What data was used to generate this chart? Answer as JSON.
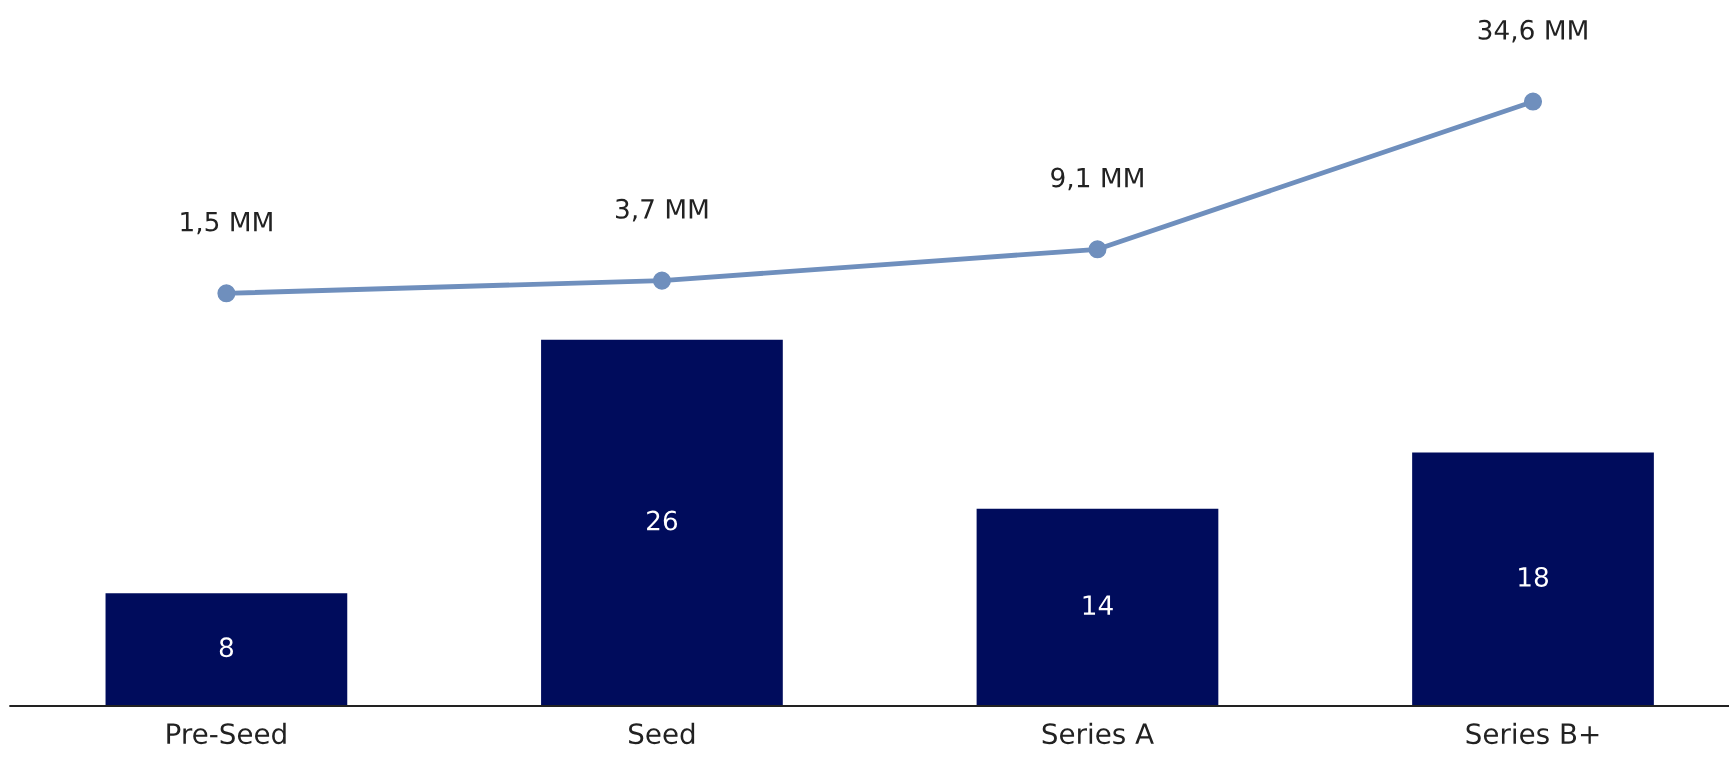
{
  "chart_data": [
    {
      "type": "line",
      "categories": [
        null,
        null,
        null,
        null
      ],
      "tick_labels": false,
      "marker": "circle",
      "line_style": "solid",
      "series": [
        {
          "color": "#6f8fbd",
          "values": [
            1.5,
            3.7,
            9.1,
            34.6
          ],
          "value_labels": [
            "1,5 MM",
            "3,7 MM",
            "9,1 MM",
            "34,6 MM"
          ]
        }
      ]
    },
    {
      "type": "bar",
      "categories": [
        "Pre-Seed",
        "Seed",
        "Series A",
        "Series B+"
      ],
      "tick_labels": "x",
      "series": [
        {
          "color": "#000c5c",
          "values": [
            8,
            26,
            14,
            18
          ],
          "value_labels": [
            "8",
            "26",
            "14",
            "18"
          ]
        }
      ]
    }
  ]
}
